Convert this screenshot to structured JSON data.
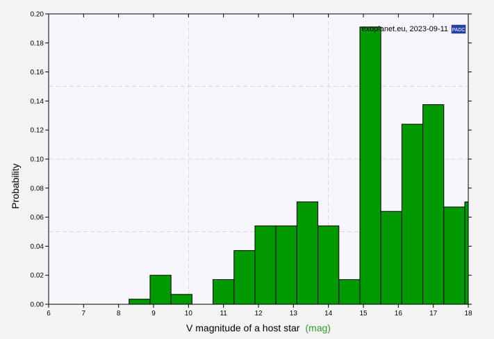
{
  "chart_data": {
    "type": "bar",
    "title": "",
    "xlabel": "V magnitude of a host star",
    "xlabel_unit": "(mag)",
    "ylabel": "Probability",
    "credit": "exoplanet.eu, 2023-09-11",
    "logo_text": "PADC",
    "xlim": [
      6,
      18
    ],
    "ylim": [
      0,
      0.2
    ],
    "xticks": [
      "6",
      "7",
      "8",
      "9",
      "10",
      "11",
      "12",
      "13",
      "14",
      "15",
      "16",
      "17",
      "18"
    ],
    "yticks": [
      "0.00",
      "0.02",
      "0.04",
      "0.06",
      "0.08",
      "0.10",
      "0.12",
      "0.14",
      "0.16",
      "0.18",
      "0.20"
    ],
    "grid": true,
    "bar_color": "#009900",
    "bins": [
      {
        "start": 8.3,
        "end": 8.9,
        "value": 0.0035
      },
      {
        "start": 8.9,
        "end": 9.5,
        "value": 0.02
      },
      {
        "start": 9.5,
        "end": 10.1,
        "value": 0.0068
      },
      {
        "start": 10.1,
        "end": 10.7,
        "value": 0.0
      },
      {
        "start": 10.7,
        "end": 11.3,
        "value": 0.017
      },
      {
        "start": 11.3,
        "end": 11.9,
        "value": 0.037
      },
      {
        "start": 11.9,
        "end": 12.5,
        "value": 0.054
      },
      {
        "start": 12.5,
        "end": 13.1,
        "value": 0.054
      },
      {
        "start": 13.1,
        "end": 13.7,
        "value": 0.0705
      },
      {
        "start": 13.7,
        "end": 14.3,
        "value": 0.054
      },
      {
        "start": 14.3,
        "end": 14.9,
        "value": 0.017
      },
      {
        "start": 14.9,
        "end": 15.5,
        "value": 0.191
      },
      {
        "start": 15.5,
        "end": 16.1,
        "value": 0.064
      },
      {
        "start": 16.1,
        "end": 16.7,
        "value": 0.124
      },
      {
        "start": 16.7,
        "end": 17.3,
        "value": 0.1375
      },
      {
        "start": 17.3,
        "end": 17.9,
        "value": 0.067
      },
      {
        "start": 17.9,
        "end": 18.5,
        "value": 0.0705
      }
    ]
  }
}
